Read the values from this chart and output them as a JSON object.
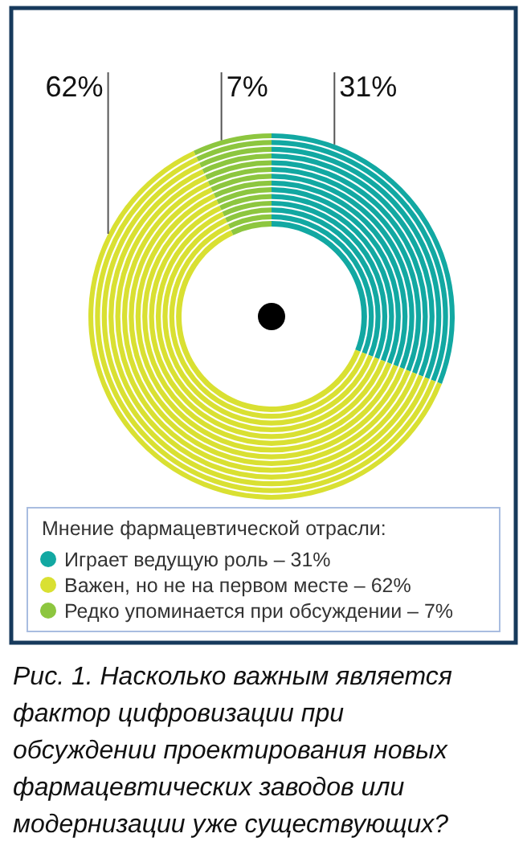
{
  "chart_data": {
    "type": "donut",
    "categories": [
      "Играет ведущую роль – 31%",
      "Важен, но не на первом месте – 62%",
      "Редко упоминается при обсуждении – 7%"
    ],
    "values": [
      31,
      62,
      7
    ],
    "colors": [
      "#12a8a2",
      "#d9e032",
      "#8dc63f"
    ],
    "value_labels": [
      "31%",
      "62%",
      "7%"
    ],
    "legend_title": "Мнение фармацевтической отрасли:",
    "legend": "bottom",
    "annotations": [
      "Рис. 1. Насколько важным является фактор цифровизации при обсуждении проектирования новых фармацевтических заводов или модернизации уже существующих?"
    ]
  }
}
